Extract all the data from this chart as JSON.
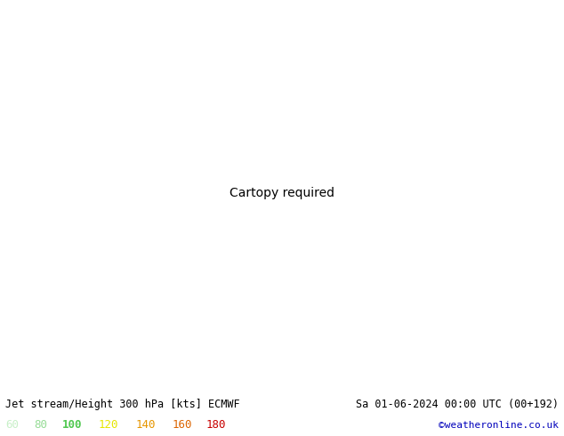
{
  "title_left": "Jet stream/Height 300 hPa [kts] ECMWF",
  "title_right": "Sa 01-06-2024 00:00 UTC (00+192)",
  "credit": "©weatheronline.co.uk",
  "legend_values": [
    "60",
    "80",
    "100",
    "120",
    "140",
    "160",
    "180"
  ],
  "legend_colors": [
    "#c8f0c8",
    "#96dc96",
    "#50c850",
    "#e6e600",
    "#e69600",
    "#dc6400",
    "#c80000"
  ],
  "bg_color": "#e0e0e0",
  "land_color": "#c8e6a0",
  "water_color": "#e0e0e0",
  "border_color": "#aaaaaa",
  "figsize": [
    6.34,
    4.9
  ],
  "dpi": 100,
  "footer_bg": "#ffffff",
  "title_color": "#000000",
  "credit_color": "#0000bb",
  "map_extent": [
    -25,
    60,
    -50,
    40
  ],
  "jet_levels": [
    60,
    80,
    100,
    120,
    140,
    160,
    180,
    220
  ],
  "contour_levels": [
    60,
    80,
    100,
    120,
    140,
    160,
    180
  ]
}
